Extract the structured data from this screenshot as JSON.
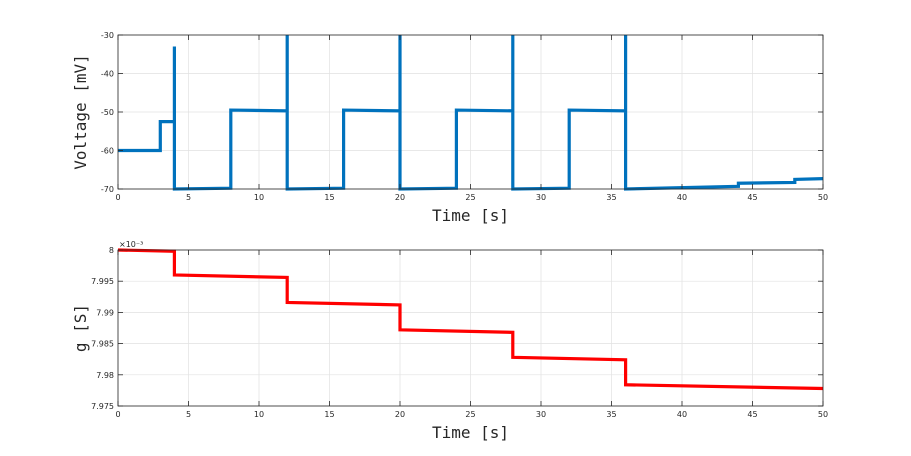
{
  "chart_data": [
    {
      "type": "line",
      "title": "",
      "xlabel": "Time [s]",
      "ylabel": "Voltage [mV]",
      "xlim": [
        0,
        50
      ],
      "ylim": [
        -70,
        -30
      ],
      "x_ticks": [
        "0",
        "5",
        "10",
        "15",
        "20",
        "25",
        "30",
        "35",
        "40",
        "45",
        "50"
      ],
      "y_ticks": [
        "-70",
        "-60",
        "-50",
        "-40",
        "-30"
      ],
      "grid": true,
      "series": [
        {
          "color": "#0072BD",
          "x": [
            0,
            3,
            3,
            4,
            4,
            4,
            8,
            8,
            12,
            12,
            12,
            16,
            16,
            20,
            20,
            20,
            24,
            24,
            28,
            28,
            28,
            32,
            32,
            36,
            36,
            36,
            44,
            44,
            48,
            48,
            50
          ],
          "y": [
            -60,
            -60,
            -52.5,
            -52.5,
            -33,
            -70,
            -69.8,
            -49.5,
            -49.7,
            -30,
            -70,
            -69.8,
            -49.5,
            -49.7,
            -30,
            -70,
            -69.8,
            -49.5,
            -49.7,
            -30,
            -70,
            -69.8,
            -49.5,
            -49.7,
            -30,
            -70,
            -69.3,
            -68.5,
            -68.3,
            -67.5,
            -67.3
          ]
        }
      ]
    },
    {
      "type": "line",
      "title": "",
      "xlabel": "Time [s]",
      "ylabel": "g [S]",
      "xlim": [
        0,
        50
      ],
      "ylim": [
        7.975,
        8.0
      ],
      "y_exponent": "×10⁻³",
      "x_ticks": [
        "0",
        "5",
        "10",
        "15",
        "20",
        "25",
        "30",
        "35",
        "40",
        "45",
        "50"
      ],
      "y_ticks": [
        "7.975",
        "7.98",
        "7.985",
        "7.99",
        "7.995",
        "8"
      ],
      "grid": true,
      "series": [
        {
          "color": "#FF0000",
          "x": [
            0,
            4,
            4,
            12,
            12,
            20,
            20,
            28,
            28,
            36,
            36,
            50
          ],
          "y": [
            8.0,
            7.9998,
            7.996,
            7.9956,
            7.9916,
            7.9912,
            7.9872,
            7.9868,
            7.9828,
            7.9824,
            7.9784,
            7.9778
          ]
        }
      ]
    }
  ]
}
